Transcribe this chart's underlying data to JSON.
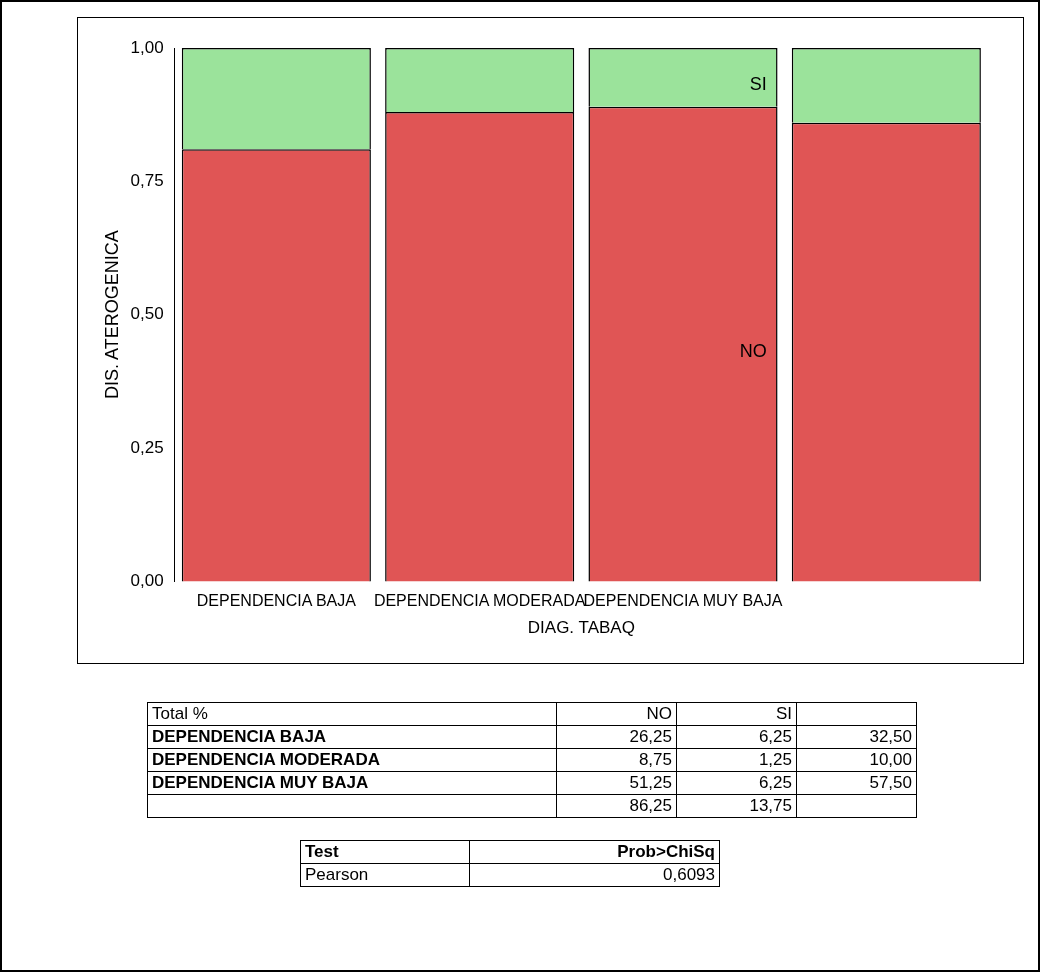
{
  "chart_data": [
    {
      "type": "bar",
      "stacked": true,
      "xlabel": "DIAG. TABAQ",
      "ylabel": "DIS. ATEROGENICA",
      "categories": [
        "DEPENDENCIA BAJA",
        "DEPENDENCIA MODERADA",
        "DEPENDENCIA MUY BAJA",
        null
      ],
      "series": [
        {
          "name": "NO",
          "color": "#e05555",
          "values": [
            0.81,
            0.88,
            0.89,
            0.86
          ]
        },
        {
          "name": "SI",
          "color": "#9be39b",
          "values": [
            0.19,
            0.12,
            0.11,
            0.14
          ]
        }
      ],
      "ylim": [
        0,
        1
      ],
      "yticks": [
        {
          "value": 0,
          "label": "0,00"
        },
        {
          "value": 0.25,
          "label": "0,25"
        },
        {
          "value": 0.5,
          "label": "0,50"
        },
        {
          "value": 0.75,
          "label": "0,75"
        },
        {
          "value": 1,
          "label": "1,00"
        }
      ],
      "legend": false,
      "grid": false
    },
    {
      "type": "other",
      "title": "Total %",
      "categories": [
        "NO",
        "SI",
        null
      ],
      "y_categories": [
        "DEPENDENCIA BAJA",
        "DEPENDENCIA MODERADA",
        "DEPENDENCIA MUY BAJA",
        null
      ],
      "cell_labels": [
        [
          "26,25",
          "6,25",
          "32,50"
        ],
        [
          "8,75",
          "1,25",
          "10,00"
        ],
        [
          "51,25",
          "6,25",
          "57,50"
        ],
        [
          "86,25",
          "13,75",
          null
        ]
      ]
    },
    {
      "type": "other",
      "title": "Test",
      "categories": [
        "Prob>ChiSq"
      ],
      "y_categories": [
        "Pearson"
      ],
      "cell_labels": [
        [
          "0,6093"
        ]
      ]
    }
  ]
}
